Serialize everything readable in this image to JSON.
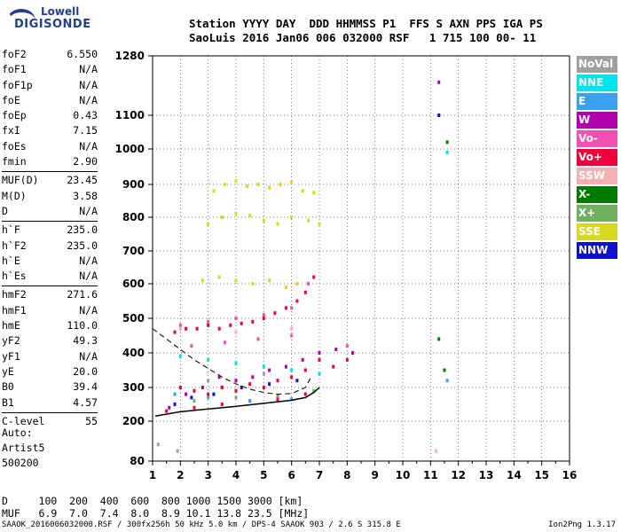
{
  "logo": {
    "line1": "Lowell",
    "line2": "DIGISONDE"
  },
  "header": {
    "line1": "Station YYYY DAY  DDD HHMMSS P1  FFS S AXN PPS IGA PS",
    "line2": "SaoLuis 2016 Jan06 006 032000 RSF   1 715 100 00- 11"
  },
  "params": [
    {
      "name": "foF2",
      "value": "6.550"
    },
    {
      "name": "foF1",
      "value": "N/A"
    },
    {
      "name": "foF1p",
      "value": "N/A"
    },
    {
      "name": "foE",
      "value": "N/A"
    },
    {
      "name": "foEp",
      "value": "0.43"
    },
    {
      "name": "fxI",
      "value": "7.15"
    },
    {
      "name": "foEs",
      "value": "N/A"
    },
    {
      "name": "fmin",
      "value": "2.90"
    },
    {
      "name": "MUF(D)",
      "value": "23.45"
    },
    {
      "name": "M(D)",
      "value": "3.58"
    },
    {
      "name": "D",
      "value": "N/A"
    },
    {
      "name": "h`F",
      "value": "235.0"
    },
    {
      "name": "h`F2",
      "value": "235.0"
    },
    {
      "name": "h`E",
      "value": "N/A"
    },
    {
      "name": "h`Es",
      "value": "N/A"
    },
    {
      "name": "hmF2",
      "value": "271.6"
    },
    {
      "name": "hmF1",
      "value": "N/A"
    },
    {
      "name": "hmE",
      "value": "110.0"
    },
    {
      "name": "yF2",
      "value": "49.3"
    },
    {
      "name": "yF1",
      "value": "N/A"
    },
    {
      "name": "yE",
      "value": "20.0"
    },
    {
      "name": "B0",
      "value": "39.4"
    },
    {
      "name": "B1",
      "value": "4.57"
    },
    {
      "name": "C-level",
      "value": "55"
    }
  ],
  "auto": {
    "line1": "Auto:",
    "line2": "Artist5",
    "line3": "500200"
  },
  "legend": [
    {
      "label": "NoVal",
      "color": "#a0a0a0"
    },
    {
      "label": "NNE",
      "color": "#00e5ee"
    },
    {
      "label": "E",
      "color": "#3aa0f0"
    },
    {
      "label": "W",
      "color": "#b000b0"
    },
    {
      "label": "Vo-",
      "color": "#f050b0"
    },
    {
      "label": "Vo+",
      "color": "#f0003c"
    },
    {
      "label": "SSW",
      "color": "#f4b0b0"
    },
    {
      "label": "X-",
      "color": "#007a00"
    },
    {
      "label": "X+",
      "color": "#70b060"
    },
    {
      "label": "SSE",
      "color": "#d8d820"
    },
    {
      "label": "NNW",
      "color": "#1010d0"
    }
  ],
  "footer": {
    "d_line": "D     100  200  400  600  800 1000 1500 3000 [km]",
    "muf_line": "MUF   6.9  7.0  7.4  8.0  8.9 10.1 13.8 23.5 [MHz]",
    "bottom": "SAAOK_2016006032000.RSF / 300fx256h 50 kHz 5.0 km / DPS-4 SAAOK 903 / 2.6 S 315.8 E",
    "version": "Ion2Png 1.3.17"
  },
  "chart_data": {
    "type": "scatter",
    "title": "",
    "xlabel": "",
    "ylabel": "",
    "xlim": [
      1,
      16
    ],
    "ylim": [
      80,
      1280
    ],
    "xticks": [
      "1",
      "2",
      "3",
      "4",
      "5",
      "6",
      "7",
      "8",
      "9",
      "10",
      "11",
      "12",
      "13",
      "14",
      "15",
      "16"
    ],
    "yticks": [
      "80",
      "200",
      "300",
      "400",
      "500",
      "600",
      "700",
      "800",
      "900",
      "1000",
      "1100",
      "1280"
    ],
    "grid": true,
    "series": [
      {
        "name": "SSE",
        "color": "#d8d820",
        "points": [
          [
            3.2,
            880
          ],
          [
            3.6,
            900
          ],
          [
            4.0,
            910
          ],
          [
            4.4,
            895
          ],
          [
            4.8,
            900
          ],
          [
            5.2,
            890
          ],
          [
            5.6,
            900
          ],
          [
            6.0,
            905
          ],
          [
            6.4,
            880
          ],
          [
            6.8,
            875
          ],
          [
            3.0,
            780
          ],
          [
            3.5,
            800
          ],
          [
            4.0,
            810
          ],
          [
            4.5,
            805
          ],
          [
            5.0,
            790
          ],
          [
            5.5,
            780
          ],
          [
            6.0,
            800
          ],
          [
            6.6,
            790
          ],
          [
            7.0,
            780
          ],
          [
            2.8,
            610
          ],
          [
            3.4,
            620
          ],
          [
            4.0,
            610
          ],
          [
            4.6,
            600
          ],
          [
            5.2,
            610
          ],
          [
            5.8,
            590
          ],
          [
            6.2,
            600
          ]
        ]
      },
      {
        "name": "Vo+",
        "color": "#f0003c",
        "points": [
          [
            1.8,
            460
          ],
          [
            2.2,
            470
          ],
          [
            2.6,
            470
          ],
          [
            3.0,
            480
          ],
          [
            3.4,
            470
          ],
          [
            3.8,
            480
          ],
          [
            4.2,
            485
          ],
          [
            4.6,
            490
          ],
          [
            5.0,
            500
          ],
          [
            5.4,
            515
          ],
          [
            5.8,
            530
          ],
          [
            6.2,
            550
          ],
          [
            6.5,
            575
          ],
          [
            6.8,
            620
          ],
          [
            2.0,
            300
          ],
          [
            2.5,
            290
          ],
          [
            3.0,
            280
          ],
          [
            3.5,
            300
          ],
          [
            4.0,
            290
          ],
          [
            4.5,
            310
          ],
          [
            5.0,
            300
          ],
          [
            5.5,
            320
          ],
          [
            6.0,
            330
          ],
          [
            6.5,
            350
          ],
          [
            7.0,
            380
          ],
          [
            7.5,
            360
          ],
          [
            8.0,
            380
          ],
          [
            1.5,
            230
          ],
          [
            2.5,
            240
          ],
          [
            3.5,
            250
          ],
          [
            4.5,
            260
          ],
          [
            5.5,
            265
          ],
          [
            6.5,
            280
          ]
        ]
      },
      {
        "name": "W",
        "color": "#b000b0",
        "points": [
          [
            1.6,
            240
          ],
          [
            2.2,
            280
          ],
          [
            2.8,
            300
          ],
          [
            3.4,
            330
          ],
          [
            4.0,
            320
          ],
          [
            4.6,
            330
          ],
          [
            5.2,
            350
          ],
          [
            5.8,
            360
          ],
          [
            6.4,
            380
          ],
          [
            7.0,
            400
          ],
          [
            7.6,
            410
          ],
          [
            8.2,
            400
          ],
          [
            11.3,
            1200
          ]
        ]
      },
      {
        "name": "Vo-",
        "color": "#f050b0",
        "points": [
          [
            2.0,
            480
          ],
          [
            3.0,
            490
          ],
          [
            4.0,
            500
          ],
          [
            5.0,
            510
          ],
          [
            6.0,
            530
          ],
          [
            6.6,
            600
          ],
          [
            2.4,
            420
          ],
          [
            3.6,
            430
          ],
          [
            4.8,
            440
          ],
          [
            6.0,
            450
          ],
          [
            8.0,
            420
          ]
        ]
      },
      {
        "name": "NNE",
        "color": "#00e5ee",
        "points": [
          [
            2.0,
            390
          ],
          [
            3.0,
            380
          ],
          [
            4.0,
            370
          ],
          [
            5.0,
            360
          ],
          [
            6.0,
            350
          ],
          [
            7.0,
            340
          ],
          [
            11.6,
            990
          ]
        ]
      },
      {
        "name": "NNW",
        "color": "#1010d0",
        "points": [
          [
            1.8,
            250
          ],
          [
            2.4,
            270
          ],
          [
            3.2,
            280
          ],
          [
            4.2,
            300
          ],
          [
            5.2,
            310
          ],
          [
            6.2,
            320
          ],
          [
            11.3,
            1100
          ]
        ]
      },
      {
        "name": "X+",
        "color": "#70b060",
        "points": [
          [
            2.5,
            260
          ],
          [
            4.0,
            270
          ],
          [
            5.5,
            275
          ],
          [
            6.8,
            290
          ],
          [
            11.5,
            350
          ]
        ]
      },
      {
        "name": "X-",
        "color": "#007a00",
        "points": [
          [
            11.3,
            440
          ],
          [
            11.6,
            1020
          ],
          [
            11.5,
            350
          ]
        ]
      },
      {
        "name": "SSW",
        "color": "#f4b0b0",
        "points": [
          [
            2.0,
            470
          ],
          [
            4.0,
            460
          ],
          [
            6.0,
            470
          ],
          [
            11.2,
            110
          ]
        ]
      },
      {
        "name": "E",
        "color": "#3aa0f0",
        "points": [
          [
            1.8,
            280
          ],
          [
            3.0,
            270
          ],
          [
            4.5,
            260
          ],
          [
            6.0,
            265
          ],
          [
            11.6,
            320
          ]
        ]
      },
      {
        "name": "NoVal",
        "color": "#a0a0a0",
        "points": [
          [
            1.2,
            130
          ],
          [
            1.9,
            110
          ],
          [
            3.0,
            320
          ],
          [
            5.0,
            340
          ]
        ]
      }
    ],
    "profile_curve": [
      [
        1.0,
        470
      ],
      [
        1.5,
        440
      ],
      [
        2.0,
        410
      ],
      [
        2.5,
        380
      ],
      [
        3.0,
        355
      ],
      [
        3.5,
        330
      ],
      [
        4.0,
        310
      ],
      [
        4.5,
        295
      ],
      [
        5.0,
        285
      ],
      [
        5.5,
        280
      ],
      [
        6.0,
        282
      ],
      [
        6.5,
        300
      ],
      [
        6.7,
        330
      ]
    ],
    "trace_line": [
      [
        1.1,
        215
      ],
      [
        2.0,
        228
      ],
      [
        3.0,
        236
      ],
      [
        4.0,
        244
      ],
      [
        5.0,
        253
      ],
      [
        6.0,
        262
      ],
      [
        6.5,
        270
      ],
      [
        6.8,
        285
      ],
      [
        7.0,
        300
      ]
    ]
  }
}
